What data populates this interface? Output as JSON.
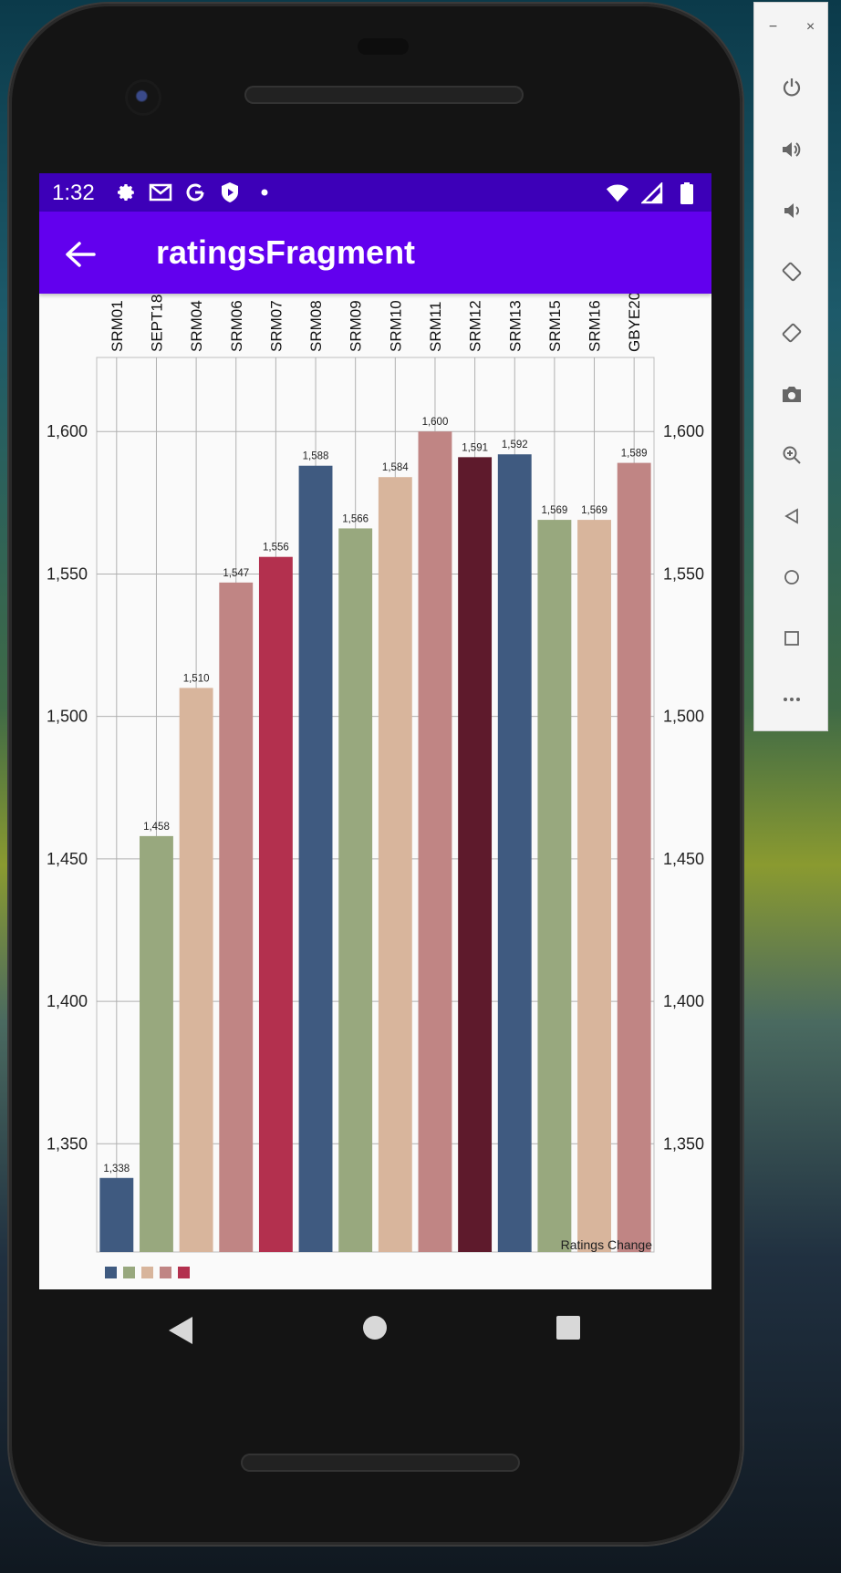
{
  "status_bar": {
    "time": "1:32",
    "left_icons": [
      "gear-icon",
      "gmail-icon",
      "google-icon",
      "shield-play-icon",
      "dot-icon"
    ],
    "right_icons": [
      "wifi-icon",
      "signal-icon",
      "battery-icon"
    ],
    "background": "#3d00b8"
  },
  "app_bar": {
    "title": "ratingsFragment",
    "background": "#6200ee"
  },
  "emulator_panel": {
    "window_controls": [
      "−",
      "×"
    ],
    "buttons": [
      "power-icon",
      "volume-up-icon",
      "volume-down-icon",
      "rotate-left-icon",
      "rotate-right-icon",
      "camera-icon",
      "zoom-icon",
      "back-icon",
      "home-icon",
      "overview-icon",
      "more-icon"
    ]
  },
  "chart_data": {
    "type": "bar",
    "categories": [
      "SRM01",
      "SEPT18",
      "SRM04",
      "SRM06",
      "SRM07",
      "SRM08",
      "SRM09",
      "SRM10",
      "SRM11",
      "SRM12",
      "SRM13",
      "SRM15",
      "SRM16",
      "GBYE20"
    ],
    "values": [
      1338,
      1458,
      1510,
      1547,
      1556,
      1588,
      1566,
      1584,
      1600,
      1591,
      1592,
      1569,
      1569,
      1589
    ],
    "value_labels": [
      "1,338",
      "1,458",
      "1,510",
      "1,547",
      "1,556",
      "1,588",
      "1,566",
      "1,584",
      "1,600",
      "1,591",
      "1,592",
      "1,569",
      "1,569",
      "1,589"
    ],
    "colors": [
      "#3f5a80",
      "#98a87e",
      "#d8b59c",
      "#c08584",
      "#b3304e",
      "#3f5a80",
      "#98a87e",
      "#d8b59c",
      "#c08584",
      "#5e1a2c",
      "#3f5a80",
      "#98a87e",
      "#d8b59c",
      "#c08584"
    ],
    "legend_colors": [
      "#3f5a80",
      "#98a87e",
      "#d8b59c",
      "#c08584",
      "#b3304e"
    ],
    "y_ticks": [
      1350,
      1400,
      1450,
      1500,
      1550,
      1600
    ],
    "y_tick_labels": [
      "1,350",
      "1,400",
      "1,450",
      "1,500",
      "1,550",
      "1,600"
    ],
    "ylim": [
      1312,
      1626
    ],
    "description_label": "Ratings Change",
    "x_labels_position": "top",
    "y_axis_both_sides": true,
    "grid": true,
    "legend_placement": "bottom-left"
  }
}
